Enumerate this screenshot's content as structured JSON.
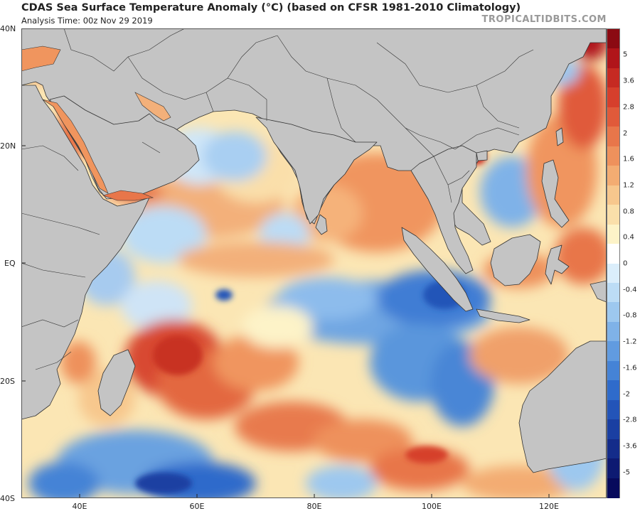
{
  "header": {
    "title": "CDAS Sea Surface Temperature Anomaly (°C) (based on CFSR 1981-2010 Climatology)",
    "subtitle": "Analysis Time: 00z Nov 29 2019",
    "credit": "TROPICALTIDBITS.COM"
  },
  "axes": {
    "lat_labels": [
      "40N",
      "20N",
      "EQ",
      "20S",
      "40S"
    ],
    "lon_labels": [
      "40E",
      "60E",
      "80E",
      "100E",
      "120E"
    ]
  },
  "colorbar": {
    "labels": [
      "5",
      "3.6",
      "2.8",
      "2",
      "1.6",
      "1.2",
      "0.8",
      "0.4",
      "0",
      "-0.4",
      "-0.8",
      "-1.2",
      "-1.6",
      "-2",
      "-2.8",
      "-3.6",
      "-5"
    ],
    "colors": [
      "#8b0a12",
      "#b0151a",
      "#c62a22",
      "#d63f2c",
      "#e05a3a",
      "#e8764a",
      "#ee915c",
      "#f3ac72",
      "#f7c78d",
      "#fadfaa",
      "#fdf3c8",
      "#ffffff",
      "#dbeefb",
      "#bcdcf5",
      "#9dc8ef",
      "#7fb2e8",
      "#619be0",
      "#4583d6",
      "#2f6bcb",
      "#2354b8",
      "#1a3fa2",
      "#142c8a",
      "#0d1a72",
      "#070a5c"
    ]
  },
  "map": {
    "land_color": "#c4c4c4",
    "border_color": "#333333",
    "ocean_base": "#fbe6b4"
  }
}
